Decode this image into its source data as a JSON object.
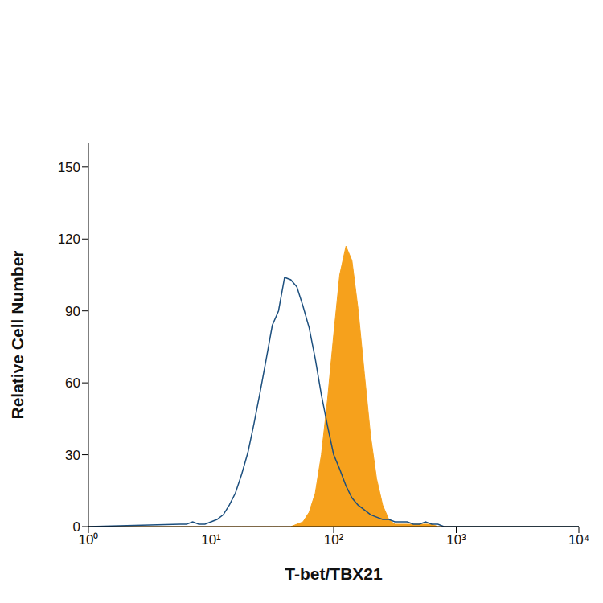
{
  "chart_data": {
    "type": "histogram",
    "x_label": "T-bet/TBX21",
    "y_label": "Relative Cell Number",
    "log": "x",
    "grid": false,
    "xlim": [
      1,
      10000
    ],
    "xticks": [
      {
        "value": 1,
        "label": "10⁰"
      },
      {
        "value": 10,
        "label": "10¹"
      },
      {
        "value": 100,
        "label": "10²"
      },
      {
        "value": 1000,
        "label": "10³"
      },
      {
        "value": 10000,
        "label": "10⁴"
      }
    ],
    "ylim": [
      0,
      160
    ],
    "yticks": [
      0,
      30,
      60,
      90,
      120,
      150
    ],
    "x": [
      1,
      5.62,
      6.31,
      7.08,
      7.94,
      8.91,
      10,
      11.2,
      12.6,
      14.1,
      15.8,
      17.8,
      20,
      22.4,
      25.1,
      28.2,
      31.6,
      35.5,
      39.8,
      44.7,
      50.1,
      56.2,
      63.1,
      70.8,
      79.4,
      89.1,
      100,
      112,
      126,
      141,
      158,
      178,
      200,
      224,
      251,
      282,
      316,
      355,
      398,
      447,
      501,
      562,
      631,
      708,
      794,
      10000
    ],
    "series": [
      {
        "type": "area",
        "color": "#f6a11c",
        "values": [
          0,
          0,
          0,
          0,
          0,
          0,
          0,
          0,
          0,
          0,
          0,
          0,
          0,
          0,
          0,
          0,
          0,
          0,
          0,
          0,
          1,
          2,
          6,
          14,
          30,
          53,
          80,
          105,
          117,
          111,
          91,
          64,
          38,
          20,
          9,
          3,
          1,
          1,
          1,
          1,
          1,
          1,
          1,
          0,
          0,
          0
        ]
      },
      {
        "type": "line",
        "color": "#1c4f7e",
        "values": [
          0,
          1,
          1,
          2,
          1,
          1,
          2,
          3,
          5,
          9,
          14,
          22,
          31,
          43,
          56,
          70,
          84,
          90,
          104,
          103,
          100,
          92,
          83,
          70,
          55,
          42,
          30,
          24,
          17,
          12,
          9,
          7,
          5,
          4,
          3,
          3,
          2,
          2,
          2,
          1,
          1,
          2,
          1,
          1,
          0,
          0
        ]
      }
    ]
  }
}
